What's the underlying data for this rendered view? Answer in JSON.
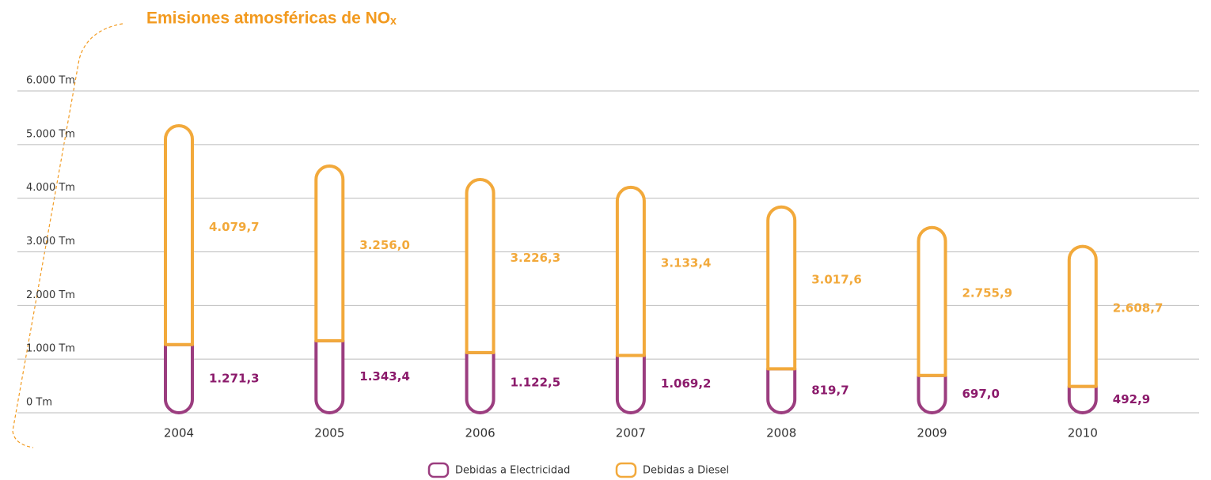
{
  "chart_data": {
    "type": "bar",
    "stacked": true,
    "title": "Emisiones atmosféricas de NOₓ",
    "categories": [
      "2004",
      "2005",
      "2006",
      "2007",
      "2008",
      "2009",
      "2010"
    ],
    "series": [
      {
        "name": "Debidas a  Electricidad",
        "color": "#9b3d7f",
        "label_color": "#8b1a6b",
        "values": [
          1271.3,
          1343.4,
          1122.5,
          1069.2,
          819.7,
          697.0,
          492.9
        ],
        "value_labels": [
          "1.271,3",
          "1.343,4",
          "1.122,5",
          "1.069,2",
          "819,7",
          "697,0",
          "492,9"
        ]
      },
      {
        "name": "Debidas a Diesel",
        "color": "#f2a93b",
        "label_color": "#f2a93b",
        "values": [
          4079.7,
          3256.0,
          3226.3,
          3133.4,
          3017.6,
          2755.9,
          2608.7
        ],
        "value_labels": [
          "4.079,7",
          "3.256,0",
          "3.226,3",
          "3.133,4",
          "3.017,6",
          "2.755,9",
          "2.608,7"
        ]
      }
    ],
    "ylim": [
      0,
      6000
    ],
    "yticks": [
      {
        "value": 0,
        "label": "0 Tm"
      },
      {
        "value": 1000,
        "label": "1.000 Tm"
      },
      {
        "value": 2000,
        "label": "2.000 Tm"
      },
      {
        "value": 3000,
        "label": "3.000 Tm"
      },
      {
        "value": 4000,
        "label": "4.000 Tm"
      },
      {
        "value": 5000,
        "label": "5.000 Tm"
      },
      {
        "value": 6000,
        "label": "6.000 Tm"
      }
    ],
    "grid": true,
    "legend": "bottom"
  }
}
